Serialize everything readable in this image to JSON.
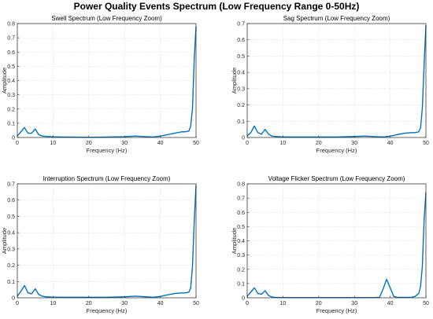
{
  "figure": {
    "suptitle": "Power Quality Events Spectrum (Low Frequency Range 0-50Hz)"
  },
  "colors": {
    "line": "#0072BD",
    "grid": "#d9d9d9",
    "axis": "#262626"
  },
  "chart_data": [
    {
      "type": "line",
      "title": "Swell Spectrum (Low Frequency Zoom)",
      "xlabel": "Frequency (Hz)",
      "ylabel": "Amplitude",
      "xlim": [
        0,
        50
      ],
      "ylim": [
        0,
        0.8
      ],
      "xticks": [
        0,
        10,
        20,
        30,
        40,
        50
      ],
      "yticks": [
        0,
        0.1,
        0.2,
        0.3,
        0.4,
        0.5,
        0.6,
        0.7,
        0.8
      ],
      "grid": true,
      "x": [
        0,
        1,
        2,
        3,
        4,
        5,
        6,
        7,
        8,
        10,
        12,
        15,
        20,
        25,
        30,
        33,
        36,
        38,
        40,
        42,
        44,
        46,
        47,
        48,
        48.5,
        49,
        49.5,
        50
      ],
      "y": [
        0.01,
        0.04,
        0.07,
        0.03,
        0.03,
        0.06,
        0.02,
        0.01,
        0.008,
        0.005,
        0.004,
        0.003,
        0.002,
        0.003,
        0.006,
        0.01,
        0.006,
        0.004,
        0.01,
        0.02,
        0.03,
        0.04,
        0.04,
        0.045,
        0.08,
        0.2,
        0.55,
        0.78
      ]
    },
    {
      "type": "line",
      "title": "Sag Spectrum (Low Frequency Zoom)",
      "xlabel": "Frequency (Hz)",
      "ylabel": "Amplitude",
      "xlim": [
        0,
        50
      ],
      "ylim": [
        0,
        0.7
      ],
      "xticks": [
        0,
        10,
        20,
        30,
        40,
        50
      ],
      "yticks": [
        0,
        0.1,
        0.2,
        0.3,
        0.4,
        0.5,
        0.6,
        0.7
      ],
      "grid": true,
      "x": [
        0,
        1,
        2,
        3,
        4,
        5,
        6,
        7,
        8,
        10,
        12,
        15,
        20,
        25,
        30,
        33,
        36,
        38,
        40,
        42,
        44,
        46,
        47,
        48,
        48.5,
        49,
        49.5,
        50
      ],
      "y": [
        0.01,
        0.03,
        0.07,
        0.03,
        0.02,
        0.05,
        0.02,
        0.008,
        0.006,
        0.004,
        0.003,
        0.003,
        0.003,
        0.003,
        0.006,
        0.009,
        0.005,
        0.003,
        0.008,
        0.018,
        0.026,
        0.03,
        0.03,
        0.035,
        0.06,
        0.18,
        0.45,
        0.69
      ]
    },
    {
      "type": "line",
      "title": "Interruption Spectrum (Low Frequency Zoom)",
      "xlabel": "Frequency (Hz)",
      "ylabel": "Amplitude",
      "xlim": [
        0,
        50
      ],
      "ylim": [
        0,
        0.7
      ],
      "xticks": [
        0,
        10,
        20,
        30,
        40,
        50
      ],
      "yticks": [
        0,
        0.1,
        0.2,
        0.3,
        0.4,
        0.5,
        0.6,
        0.7
      ],
      "grid": true,
      "x": [
        0,
        1,
        2,
        3,
        4,
        5,
        6,
        7,
        8,
        10,
        12,
        15,
        20,
        25,
        30,
        33,
        36,
        38,
        40,
        42,
        44,
        46,
        47,
        48,
        48.5,
        49,
        49.5,
        50
      ],
      "y": [
        0.01,
        0.04,
        0.075,
        0.03,
        0.025,
        0.055,
        0.02,
        0.01,
        0.006,
        0.004,
        0.003,
        0.003,
        0.003,
        0.003,
        0.006,
        0.01,
        0.006,
        0.003,
        0.008,
        0.018,
        0.026,
        0.03,
        0.03,
        0.035,
        0.06,
        0.19,
        0.47,
        0.69
      ]
    },
    {
      "type": "line",
      "title": "Voltage Flicker Spectrum (Low Frequency Zoom)",
      "xlabel": "Frequency (Hz)",
      "ylabel": "Amplitude",
      "xlim": [
        0,
        50
      ],
      "ylim": [
        0,
        0.8
      ],
      "xticks": [
        0,
        10,
        20,
        30,
        40,
        50
      ],
      "yticks": [
        0,
        0.1,
        0.2,
        0.3,
        0.4,
        0.5,
        0.6,
        0.7,
        0.8
      ],
      "grid": true,
      "x": [
        0,
        1,
        2,
        3,
        4,
        5,
        6,
        7,
        8,
        10,
        15,
        20,
        25,
        30,
        35,
        37,
        38,
        39,
        40,
        41,
        42,
        44,
        46,
        47,
        48,
        48.5,
        49,
        49.5,
        50
      ],
      "y": [
        0.01,
        0.04,
        0.07,
        0.03,
        0.025,
        0.05,
        0.015,
        0.005,
        0.003,
        0.002,
        0.002,
        0.002,
        0.002,
        0.002,
        0.002,
        0.003,
        0.06,
        0.13,
        0.07,
        0.01,
        0.003,
        0.003,
        0.004,
        0.01,
        0.03,
        0.08,
        0.22,
        0.55,
        0.74
      ]
    }
  ]
}
